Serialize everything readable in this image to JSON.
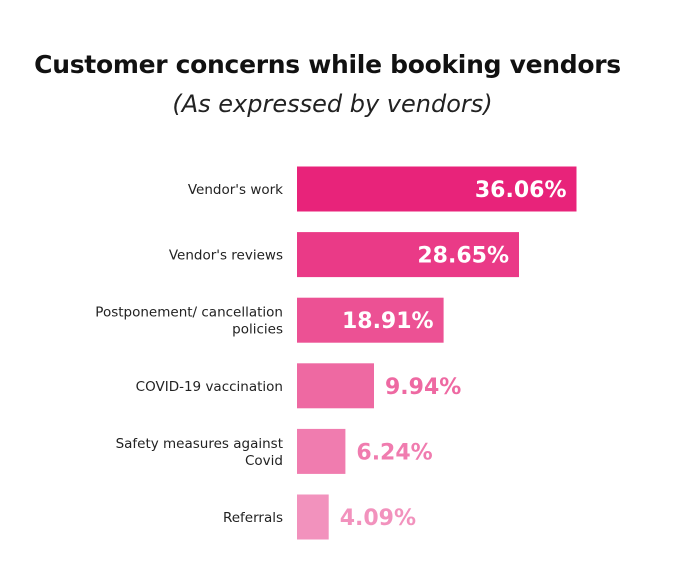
{
  "chart_data": {
    "type": "bar",
    "orientation": "horizontal",
    "title": "Customer concerns while booking vendors",
    "subtitle": "(As expressed by vendors)",
    "categories": [
      [
        "Vendor's work"
      ],
      [
        "Vendor's reviews"
      ],
      [
        "Postponement/ cancellation",
        "policies"
      ],
      [
        "COVID-19 vaccination"
      ],
      [
        "Safety measures against",
        "Covid"
      ],
      [
        "Referrals"
      ]
    ],
    "values": [
      36.06,
      28.65,
      18.91,
      9.94,
      6.24,
      4.09
    ],
    "value_labels": [
      "36.06%",
      "28.65%",
      "18.91%",
      "9.94%",
      "6.24%",
      "4.09%"
    ],
    "colors": [
      "#e8237a",
      "#ea3a87",
      "#ec5194",
      "#ee69a2",
      "#f07caf",
      "#f292bd"
    ],
    "label_color_inside": "#ffffff",
    "grid": false,
    "legend": false
  }
}
